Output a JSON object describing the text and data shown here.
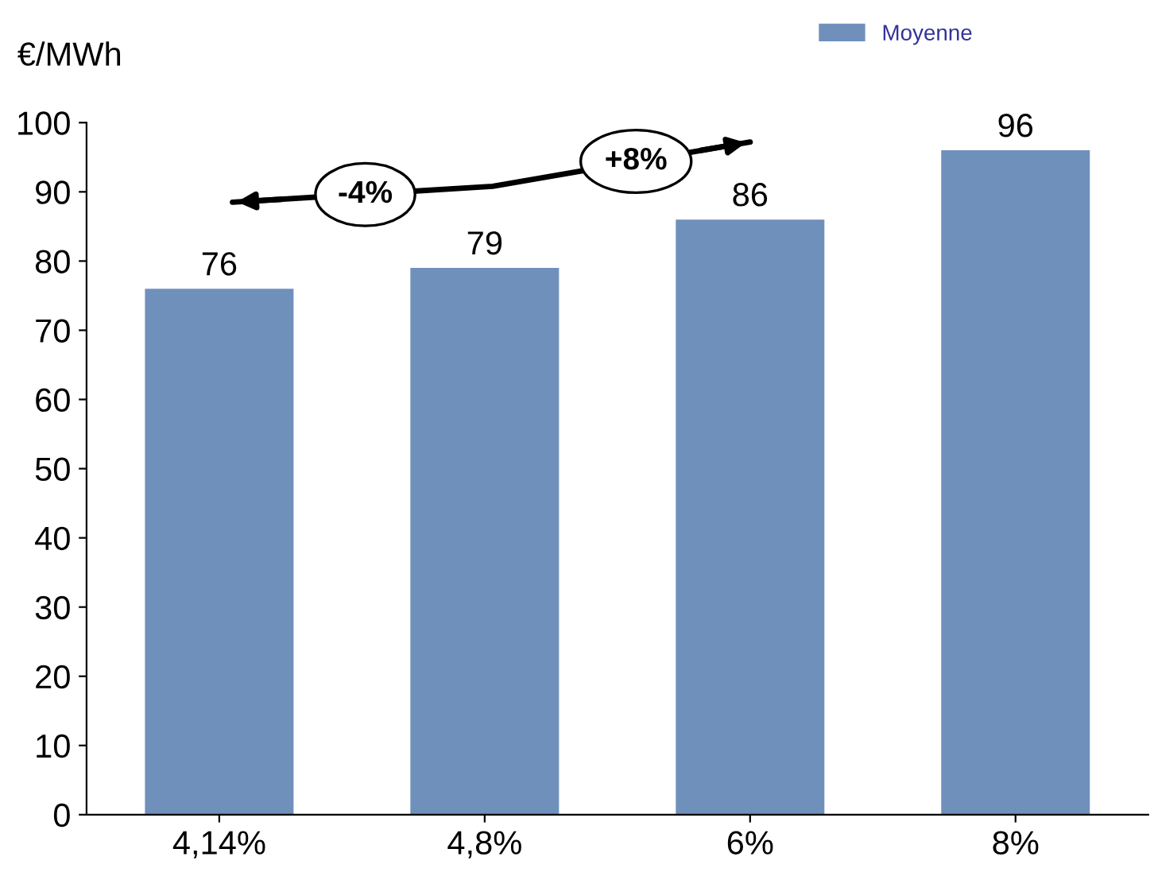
{
  "chart_data": {
    "type": "bar",
    "ylabel": "€/MWh",
    "categories": [
      "4,14%",
      "4,8%",
      "6%",
      "8%"
    ],
    "series": [
      {
        "name": "Moyenne",
        "color": "#7090bc",
        "values": [
          76,
          79,
          86,
          96
        ]
      }
    ],
    "ylim": [
      0,
      100
    ],
    "yticks": [
      0,
      10,
      20,
      30,
      40,
      50,
      60,
      70,
      80,
      90,
      100
    ],
    "data_labels": true,
    "legend": "top right",
    "grid": false,
    "annotations": [
      "-4%",
      "+8%"
    ]
  }
}
